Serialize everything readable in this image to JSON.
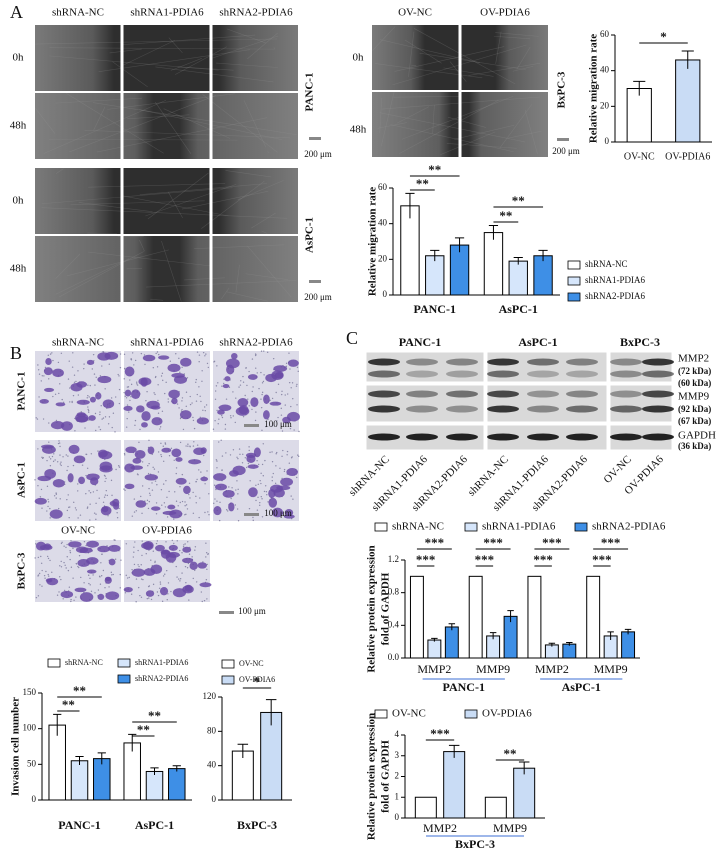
{
  "panels": {
    "A": {
      "label": "A",
      "columns": [
        "shRNA-NC",
        "shRNA1-PDIA6",
        "shRNA2-PDIA6"
      ],
      "ov_columns": [
        "OV-NC",
        "OV-PDIA6"
      ],
      "times": [
        "0h",
        "48h"
      ],
      "cell_lines": [
        "PANC-1",
        "AsPC-1",
        "BxPC-3"
      ],
      "scale": "200 μm"
    },
    "B": {
      "label": "B",
      "columns": [
        "shRNA-NC",
        "shRNA1-PDIA6",
        "shRNA2-PDIA6"
      ],
      "ov_columns": [
        "OV-NC",
        "OV-PDIA6"
      ],
      "cell_lines": [
        "PANC-1",
        "AsPC-1",
        "BxPC-3"
      ],
      "scale": "100 μm"
    },
    "C": {
      "label": "C",
      "cell_lines": [
        "PANC-1",
        "AsPC-1",
        "BxPC-3"
      ],
      "bands": [
        "MMP2",
        "(72 kDa)",
        "(60 kDa)",
        "MMP9",
        "(92 kDa)",
        "(67 kDa)",
        "GAPDH",
        "(36 kDa)"
      ],
      "lanes": [
        "shRNA-NC",
        "shRNA1-PDIA6",
        "shRNA2-PDIA6",
        "shRNA-NC",
        "shRNA1-PDIA6",
        "shRNA2-PDIA6",
        "OV-NC",
        "OV-PDIA6"
      ]
    }
  },
  "chart_data": [
    {
      "type": "bar",
      "ylabel": "Relative migration rate",
      "categories": [
        "OV-NC",
        "OV-PDIA6"
      ],
      "values": [
        30,
        46
      ],
      "errors": [
        4,
        5
      ],
      "colors": [
        "#ffffff",
        "#c9dcf5"
      ],
      "ylim": [
        0,
        60
      ],
      "yticks": [
        0,
        20,
        40,
        60
      ],
      "significance": [
        "*"
      ]
    },
    {
      "type": "bar",
      "ylabel": "Relative migration rate",
      "categories": [
        "PANC-1",
        "AsPC-1"
      ],
      "series": [
        {
          "name": "shRNA-NC",
          "color": "#ffffff",
          "values": [
            50,
            35
          ],
          "errors": [
            7,
            4
          ]
        },
        {
          "name": "shRNA1-PDIA6",
          "color": "#d6e6fb",
          "values": [
            22,
            19
          ],
          "errors": [
            3,
            2
          ]
        },
        {
          "name": "shRNA2-PDIA6",
          "color": "#3e8fe6",
          "values": [
            28,
            22
          ],
          "errors": [
            4,
            3
          ]
        }
      ],
      "ylim": [
        0,
        60
      ],
      "yticks": [
        0,
        20,
        40,
        60
      ],
      "significance": [
        "**",
        "**",
        "**",
        "**"
      ]
    },
    {
      "type": "bar",
      "ylabel": "Invasion cell number",
      "categories": [
        "PANC-1",
        "AsPC-1"
      ],
      "series": [
        {
          "name": "shRNA-NC",
          "color": "#ffffff",
          "values": [
            105,
            80
          ],
          "errors": [
            15,
            12
          ]
        },
        {
          "name": "shRNA1-PDIA6",
          "color": "#d6e6fb",
          "values": [
            55,
            40
          ],
          "errors": [
            6,
            5
          ]
        },
        {
          "name": "shRNA2-PDIA6",
          "color": "#3e8fe6",
          "values": [
            58,
            44
          ],
          "errors": [
            8,
            4
          ]
        }
      ],
      "ylim": [
        0,
        150
      ],
      "yticks": [
        0,
        50,
        100,
        150
      ],
      "significance": [
        "**",
        "**",
        "**",
        "**"
      ]
    },
    {
      "type": "bar",
      "categories": [
        "BxPC-3"
      ],
      "series": [
        {
          "name": "OV-NC",
          "color": "#ffffff",
          "values": [
            57
          ],
          "errors": [
            8
          ]
        },
        {
          "name": "OV-PDIA6",
          "color": "#c9dcf5",
          "values": [
            102
          ],
          "errors": [
            15
          ]
        }
      ],
      "ylim": [
        0,
        120
      ],
      "yticks": [
        0,
        40,
        80,
        120
      ],
      "significance": [
        "*"
      ]
    },
    {
      "type": "bar",
      "ylabel": [
        "Relative protein expression",
        "fold of GAPDH"
      ],
      "categories": [
        "MMP2",
        "MMP9",
        "MMP2",
        "MMP9"
      ],
      "groups": [
        "PANC-1",
        "AsPC-1"
      ],
      "series": [
        {
          "name": "shRNA-NC",
          "color": "#ffffff",
          "values": [
            1,
            1,
            1,
            1
          ]
        },
        {
          "name": "shRNA1-PDIA6",
          "color": "#d6e6fb",
          "values": [
            0.22,
            0.27,
            0.16,
            0.27
          ],
          "errors": [
            0.02,
            0.04,
            0.02,
            0.05
          ]
        },
        {
          "name": "shRNA2-PDIA6",
          "color": "#3e8fe6",
          "values": [
            0.38,
            0.51,
            0.17,
            0.32
          ],
          "errors": [
            0.04,
            0.07,
            0.02,
            0.03
          ]
        }
      ],
      "ylim": [
        0,
        1.2
      ],
      "yticks": [
        {
          "value": 0,
          "label": "0.0"
        },
        0.4,
        0.8,
        1.2
      ],
      "significance": [
        "***",
        "***",
        "***",
        "***",
        "***",
        "***",
        "***",
        "***"
      ]
    },
    {
      "type": "bar",
      "ylabel": [
        "Relative protein expression",
        "fold of GAPDH"
      ],
      "categories": [
        "MMP2",
        "MMP9"
      ],
      "groups": [
        "BxPC-3"
      ],
      "series": [
        {
          "name": "OV-NC",
          "color": "#ffffff",
          "values": [
            1,
            1
          ]
        },
        {
          "name": "OV-PDIA6",
          "color": "#c9dcf5",
          "values": [
            3.2,
            2.4
          ],
          "errors": [
            0.3,
            0.3
          ]
        }
      ],
      "ylim": [
        0,
        4
      ],
      "yticks": [
        0,
        1,
        2,
        3,
        4
      ],
      "significance": [
        "***",
        "**"
      ]
    }
  ]
}
